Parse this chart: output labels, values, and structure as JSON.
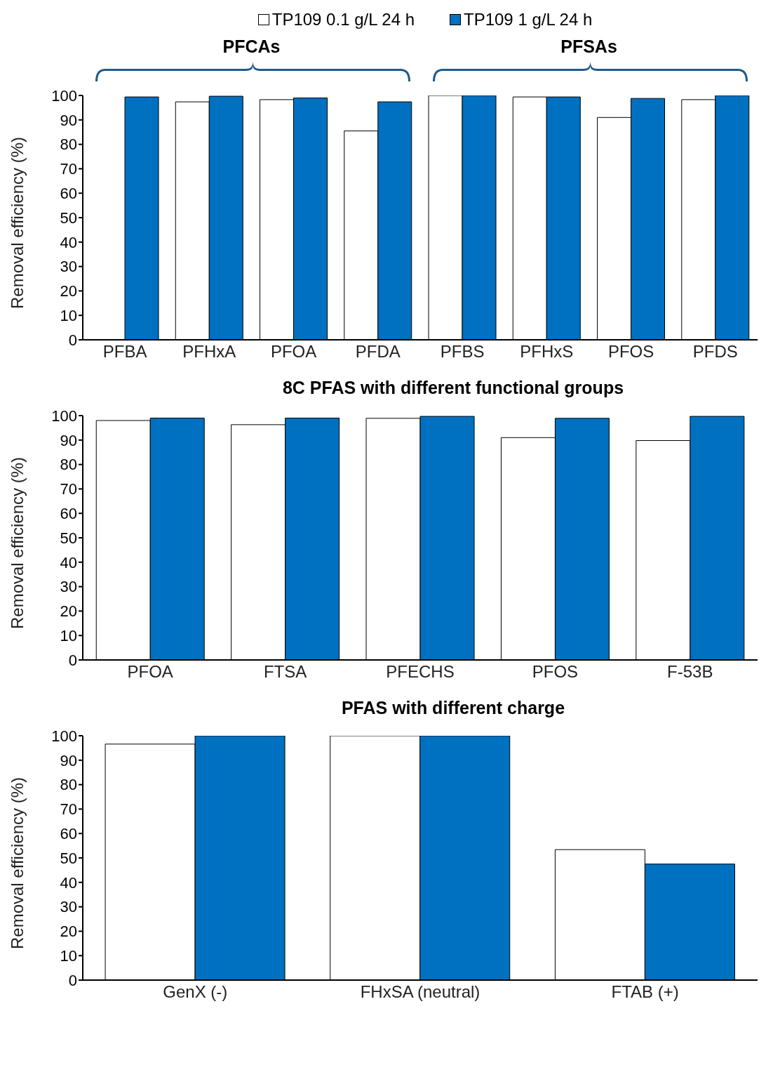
{
  "chart_data": [
    {
      "type": "bar",
      "ylabel": "Removal efficiency (%)",
      "categories": [
        "PFBA",
        "PFHxA",
        "PFOA",
        "PFDA",
        "PFBS",
        "PFHxS",
        "PFOS",
        "PFDS"
      ],
      "series": [
        {
          "name": "TP109 0.1 g/L 24 h",
          "color": "#ffffff",
          "values": [
            null,
            97.4,
            98.3,
            85.5,
            100,
            99.4,
            91,
            98.3
          ]
        },
        {
          "name": "TP109 1 g/L 24 h",
          "color": "#0070c0",
          "values": [
            99.4,
            99.7,
            99,
            97.4,
            100,
            99.4,
            98.8,
            100
          ]
        }
      ],
      "ylim": [
        0,
        100
      ],
      "yticks": [
        0,
        10,
        20,
        30,
        40,
        50,
        60,
        70,
        80,
        90,
        100
      ],
      "grid": false,
      "legend": "top",
      "annotations": [
        "PFCAs",
        "PFSAs"
      ]
    },
    {
      "type": "bar",
      "title": "8C PFAS with different functional groups",
      "ylabel": "Removal efficiency (%)",
      "categories": [
        "PFOA",
        "FTSA",
        "PFECHS",
        "PFOS",
        "F-53B"
      ],
      "series": [
        {
          "color": "#ffffff",
          "values": [
            98,
            96.3,
            98.9,
            91,
            89.8
          ]
        },
        {
          "color": "#0070c0",
          "values": [
            99,
            99,
            99.7,
            98.9,
            99.7
          ]
        }
      ],
      "ylim": [
        0,
        100
      ],
      "yticks": [
        0,
        10,
        20,
        30,
        40,
        50,
        60,
        70,
        80,
        90,
        100
      ],
      "grid": false
    },
    {
      "type": "bar",
      "title": "PFAS with different charge",
      "ylabel": "Removal efficiency (%)",
      "categories": [
        "GenX (-)",
        "FHxSA (neutral)",
        "FTAB (+)"
      ],
      "series": [
        {
          "color": "#ffffff",
          "values": [
            96.6,
            100,
            53.4
          ]
        },
        {
          "color": "#0070c0",
          "values": [
            100,
            100,
            47.5
          ]
        }
      ],
      "ylim": [
        0,
        100
      ],
      "yticks": [
        0,
        10,
        20,
        30,
        40,
        50,
        60,
        70,
        80,
        90,
        100
      ],
      "grid": false
    }
  ]
}
